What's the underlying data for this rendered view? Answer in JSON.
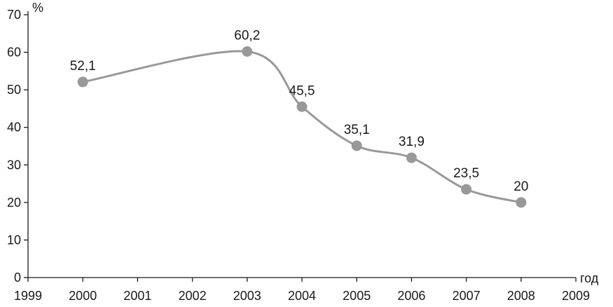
{
  "chart_data": {
    "type": "line",
    "title": "",
    "xlabel": "год",
    "ylabel": "%",
    "x_ticks": [
      "1999",
      "2000",
      "2001",
      "2002",
      "2003",
      "2004",
      "2005",
      "2006",
      "2007",
      "2008",
      "2009"
    ],
    "y_ticks": [
      "0",
      "10",
      "20",
      "30",
      "40",
      "50",
      "60",
      "70"
    ],
    "xlim": [
      1999,
      2009
    ],
    "ylim": [
      0,
      70
    ],
    "grid": false,
    "legend": "none",
    "series": [
      {
        "x": [
          2000,
          2003,
          2004,
          2005,
          2006,
          2007,
          2008
        ],
        "values": [
          52.1,
          60.2,
          45.5,
          35.1,
          31.9,
          23.5,
          20
        ],
        "labels": [
          "52,1",
          "60,2",
          "45,5",
          "35,1",
          "31,9",
          "23,5",
          "20"
        ]
      }
    ],
    "colors": {
      "series": "#999999",
      "axis": "#1a1a1a"
    }
  }
}
